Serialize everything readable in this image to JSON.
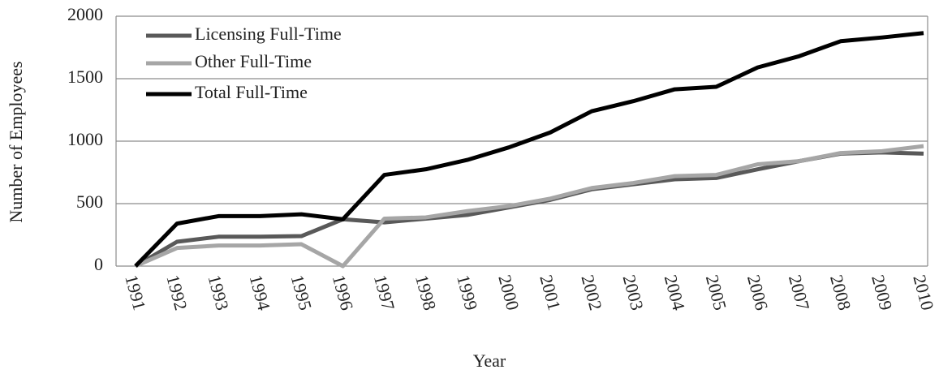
{
  "chart_data": {
    "type": "line",
    "x_label": "Year",
    "y_label": "Number of Employees",
    "categories": [
      "1991",
      "1992",
      "1993",
      "1994",
      "1995",
      "1996",
      "1997",
      "1998",
      "1999",
      "2000",
      "2001",
      "2002",
      "2003",
      "2004",
      "2005",
      "2006",
      "2007",
      "2008",
      "2009",
      "2010"
    ],
    "series": [
      {
        "name": "Licensing Full-Time",
        "color": "#595959",
        "values": [
          0,
          195,
          235,
          235,
          240,
          375,
          350,
          380,
          410,
          470,
          530,
          615,
          655,
          695,
          705,
          775,
          840,
          900,
          910,
          900
        ]
      },
      {
        "name": "Other Full-Time",
        "color": "#a6a6a6",
        "values": [
          0,
          145,
          165,
          165,
          175,
          0,
          380,
          390,
          440,
          480,
          540,
          625,
          665,
          720,
          730,
          815,
          840,
          905,
          920,
          960
        ]
      },
      {
        "name": "Total Full-Time",
        "color": "#000000",
        "values": [
          0,
          340,
          400,
          400,
          415,
          375,
          730,
          775,
          850,
          950,
          1070,
          1240,
          1320,
          1415,
          1435,
          1590,
          1680,
          1800,
          1830,
          1865
        ]
      }
    ],
    "ylim": [
      0,
      2000
    ],
    "yticks": [
      0,
      500,
      1000,
      1500,
      2000
    ],
    "grid": true,
    "legend": "upper left"
  }
}
